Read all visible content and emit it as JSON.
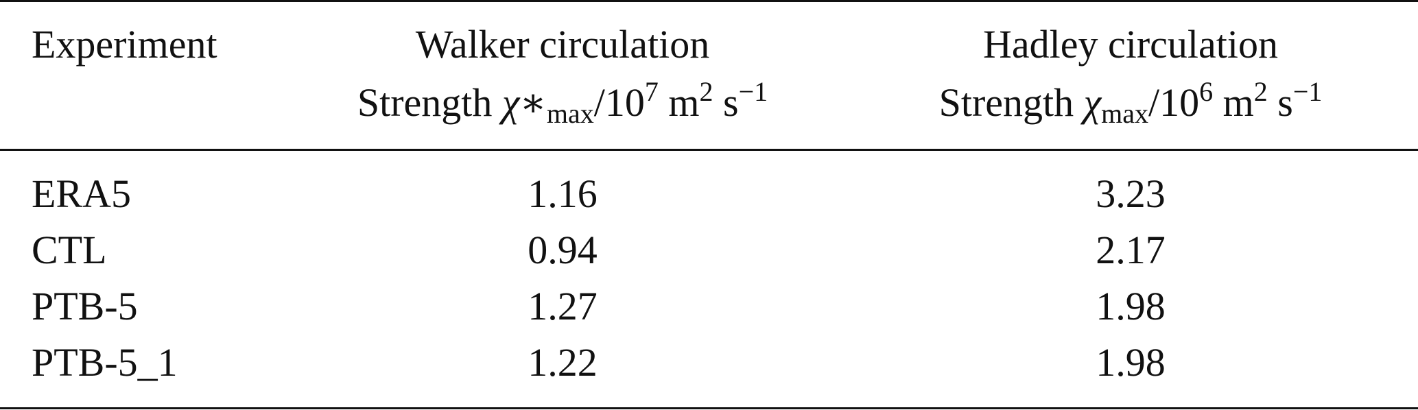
{
  "table": {
    "header": {
      "experiment": "Experiment",
      "walker": {
        "title": "Walker circulation",
        "strength_prefix": "Strength ",
        "symbol": "χ∗",
        "symbol_sub": "max",
        "unit_base": "/10",
        "unit_exp": "7",
        "unit_m": " m",
        "unit_m_exp": "2",
        "unit_s": " s",
        "unit_s_exp": "−1"
      },
      "hadley": {
        "title": "Hadley circulation",
        "strength_prefix": "Strength ",
        "symbol": "χ",
        "symbol_sub": "max",
        "unit_base": "/10",
        "unit_exp": "6",
        "unit_m": " m",
        "unit_m_exp": "2",
        "unit_s": " s",
        "unit_s_exp": "−1"
      }
    },
    "rows": [
      {
        "experiment": "ERA5",
        "walker": "1.16",
        "hadley": "3.23"
      },
      {
        "experiment": "CTL",
        "walker": "0.94",
        "hadley": "2.17"
      },
      {
        "experiment": "PTB-5",
        "walker": "1.27",
        "hadley": "1.98"
      },
      {
        "experiment": "PTB-5_1",
        "walker": "1.22",
        "hadley": "1.98"
      }
    ]
  }
}
